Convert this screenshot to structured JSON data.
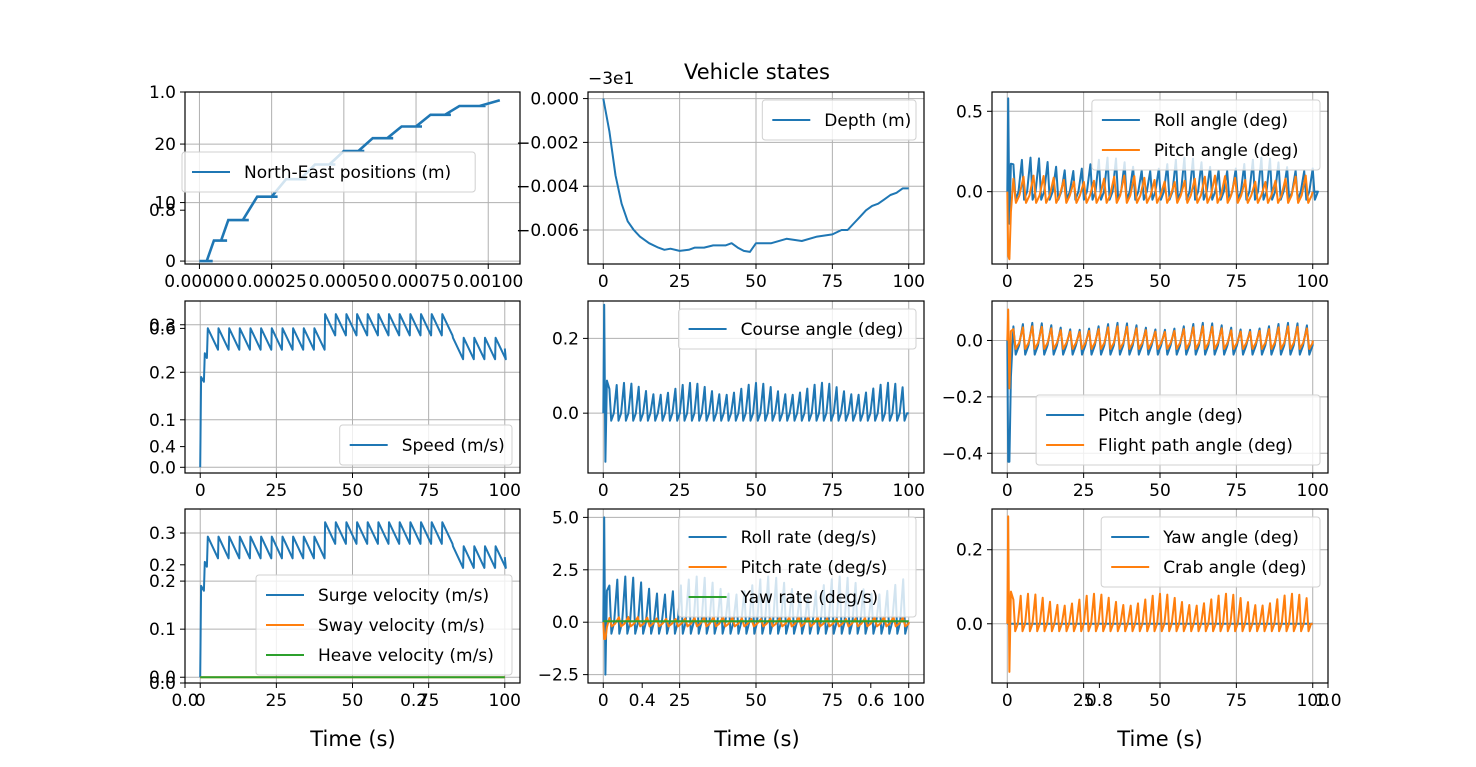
{
  "figure": {
    "title": "Vehicle states",
    "colors": {
      "blue": "#1f77b4",
      "orange": "#ff7f0e",
      "green": "#2ca02c"
    }
  },
  "chart_data": [
    {
      "id": "p1",
      "type": "line",
      "row": 0,
      "col": 0,
      "xlim": [
        -5e-05,
        0.00111
      ],
      "ylim": [
        -0.5,
        28.9
      ],
      "xticks": [
        "0.00000",
        "0.00025",
        "0.00050",
        "0.00075",
        "0.00100"
      ],
      "xtickvals": [
        0,
        0.00025,
        0.0005,
        0.00075,
        0.001
      ],
      "yticks": [
        "0",
        "10",
        "20"
      ],
      "ytickvals": [
        0,
        10,
        20
      ],
      "legend": "center-left",
      "grid": true,
      "series": [
        {
          "name": "North-East positions (m)",
          "color": "#1f77b4",
          "kind": "ne",
          "x": [
            0,
            5e-05,
            0.0001,
            0.0002,
            0.0003,
            0.0004,
            0.0005,
            0.0006,
            0.0007,
            0.0008,
            0.0009,
            0.00104
          ],
          "y": [
            0,
            3.5,
            7,
            11,
            14,
            16.5,
            18.8,
            21,
            23,
            25,
            26.5,
            27.5
          ]
        }
      ]
    },
    {
      "id": "p2",
      "type": "line",
      "row": 0,
      "col": 1,
      "offset_text": "−3e1",
      "xlim": [
        -5,
        105
      ],
      "ylim": [
        -0.00755,
        0.0003
      ],
      "xticks": [
        "0",
        "25",
        "50",
        "75",
        "100"
      ],
      "xtickvals": [
        0,
        25,
        50,
        75,
        100
      ],
      "yticks": [
        "0.000",
        "−0.002",
        "−0.004",
        "−0.006"
      ],
      "ytickvals": [
        0,
        -0.002,
        -0.004,
        -0.006
      ],
      "legend": "upper-right",
      "grid": true,
      "series": [
        {
          "name": "Depth (m)",
          "color": "#1f77b4",
          "kind": "points",
          "x": [
            0,
            2,
            4,
            6,
            8,
            10,
            12,
            15,
            18,
            20,
            22,
            25,
            28,
            30,
            33,
            36,
            40,
            42,
            44,
            46,
            48,
            50,
            55,
            60,
            65,
            70,
            75,
            78,
            80,
            82,
            84,
            86,
            88,
            90,
            92,
            94,
            96,
            98,
            100
          ],
          "y": [
            0,
            -0.0015,
            -0.0035,
            -0.0048,
            -0.0056,
            -0.006,
            -0.0063,
            -0.0066,
            -0.0068,
            -0.0069,
            -0.00685,
            -0.00695,
            -0.0069,
            -0.0068,
            -0.0068,
            -0.0067,
            -0.0067,
            -0.0066,
            -0.0068,
            -0.00695,
            -0.007,
            -0.0066,
            -0.0066,
            -0.0064,
            -0.0065,
            -0.0063,
            -0.0062,
            -0.006,
            -0.006,
            -0.0057,
            -0.0054,
            -0.0051,
            -0.0049,
            -0.0048,
            -0.0046,
            -0.0044,
            -0.0043,
            -0.0041,
            -0.0041
          ]
        }
      ]
    },
    {
      "id": "p3",
      "type": "line",
      "row": 0,
      "col": 2,
      "xlim": [
        -5,
        105
      ],
      "ylim": [
        -0.45,
        0.62
      ],
      "xticks": [
        "0",
        "25",
        "50",
        "75",
        "100"
      ],
      "xtickvals": [
        0,
        25,
        50,
        75,
        100
      ],
      "yticks": [
        "0.0",
        "0.5"
      ],
      "ytickvals": [
        0,
        0.5
      ],
      "legend": "upper-right",
      "grid": true,
      "series": [
        {
          "name": "Roll angle (deg)",
          "color": "#1f77b4",
          "kind": "osc",
          "spike": 0.58,
          "spikeMin": -0.2,
          "hi": 0.17,
          "lo": -0.05,
          "period": 2.8
        },
        {
          "name": "Pitch angle (deg)",
          "color": "#ff7f0e",
          "kind": "osc",
          "spike": -0.4,
          "spikeMin": -0.42,
          "hi": 0.08,
          "lo": -0.07,
          "period": 3.3
        }
      ]
    },
    {
      "id": "p4",
      "type": "line",
      "row": 1,
      "col": 0,
      "xlim": [
        -5,
        105
      ],
      "ylim": [
        -0.012,
        0.35
      ],
      "xticks": [
        "0",
        "25",
        "50",
        "75",
        "100"
      ],
      "xtickvals": [
        0,
        25,
        50,
        75,
        100
      ],
      "yticks": [
        "0.0",
        "0.1",
        "0.2",
        "0.3"
      ],
      "ytickvals": [
        0,
        0.1,
        0.2,
        0.3
      ],
      "legend": "lower-right",
      "grid": true,
      "series": [
        {
          "name": "Speed (m/s)",
          "color": "#1f77b4",
          "kind": "saw",
          "base1": 0.27,
          "base2": 0.3,
          "base3": 0.25,
          "amp": 0.045,
          "period": 3.5
        }
      ]
    },
    {
      "id": "p5",
      "type": "line",
      "row": 1,
      "col": 1,
      "xlim": [
        -5,
        105
      ],
      "ylim": [
        -0.16,
        0.3
      ],
      "xticks": [
        "0",
        "25",
        "50",
        "75",
        "100"
      ],
      "xtickvals": [
        0,
        25,
        50,
        75,
        100
      ],
      "yticks": [
        "0.0",
        "0.2"
      ],
      "ytickvals": [
        0,
        0.2
      ],
      "legend": "upper-right",
      "grid": true,
      "series": [
        {
          "name": "Course angle (deg)",
          "color": "#1f77b4",
          "kind": "osc",
          "spike": 0.29,
          "spikeMin": -0.13,
          "hi": 0.065,
          "lo": -0.02,
          "period": 2.4
        }
      ]
    },
    {
      "id": "p6",
      "type": "line",
      "row": 1,
      "col": 2,
      "xlim": [
        -5,
        105
      ],
      "ylim": [
        -0.47,
        0.14
      ],
      "xticks": [
        "0",
        "25",
        "50",
        "75",
        "100"
      ],
      "xtickvals": [
        0,
        25,
        50,
        75,
        100
      ],
      "yticks": [
        "0.0",
        "−0.2",
        "−0.4"
      ],
      "ytickvals": [
        0,
        -0.2,
        -0.4
      ],
      "legend": "lower-right",
      "grid": true,
      "series": [
        {
          "name": "Pitch angle (deg)",
          "color": "#1f77b4",
          "kind": "osc",
          "spike": -0.43,
          "spikeMin": -0.43,
          "hi": 0.05,
          "lo": -0.05,
          "period": 3.1
        },
        {
          "name": "Flight path angle (deg)",
          "color": "#ff7f0e",
          "kind": "osc",
          "spike": 0.11,
          "spikeMin": -0.17,
          "hi": 0.04,
          "lo": -0.03,
          "period": 3.1
        }
      ]
    },
    {
      "id": "p7",
      "type": "line",
      "row": 2,
      "col": 0,
      "xlim": [
        -5,
        105
      ],
      "ylim": [
        -0.012,
        0.35
      ],
      "xticks": [
        "0",
        "25",
        "50",
        "75",
        "100"
      ],
      "xtickvals": [
        0,
        25,
        50,
        75,
        100
      ],
      "yticks": [
        "0.0",
        "0.1",
        "0.2",
        "0.3"
      ],
      "ytickvals": [
        0,
        0.1,
        0.2,
        0.3
      ],
      "legend": "lower-right",
      "grid": true,
      "series": [
        {
          "name": "Surge velocity (m/s)",
          "color": "#1f77b4",
          "kind": "saw",
          "base1": 0.27,
          "base2": 0.3,
          "base3": 0.25,
          "amp": 0.045,
          "period": 3.5
        },
        {
          "name": "Sway velocity (m/s)",
          "color": "#ff7f0e",
          "kind": "flat",
          "value": 0
        },
        {
          "name": "Heave velocity (m/s)",
          "color": "#2ca02c",
          "kind": "flat",
          "value": 0
        }
      ]
    },
    {
      "id": "p8",
      "type": "line",
      "row": 2,
      "col": 1,
      "xlim": [
        -5,
        105
      ],
      "ylim": [
        -2.9,
        5.4
      ],
      "xticks": [
        "0",
        "25",
        "50",
        "75",
        "100"
      ],
      "xtickvals": [
        0,
        25,
        50,
        75,
        100
      ],
      "yticks": [
        "5.0",
        "2.5",
        "0.0",
        "−2.5"
      ],
      "ytickvals": [
        5,
        2.5,
        0,
        -2.5
      ],
      "legend": "upper-right",
      "grid": true,
      "series": [
        {
          "name": "Roll rate (deg/s)",
          "color": "#1f77b4",
          "kind": "osc",
          "spike": 5.0,
          "spikeMin": -2.5,
          "hi": 1.75,
          "lo": -0.55,
          "period": 2.6
        },
        {
          "name": "Pitch rate (deg/s)",
          "color": "#ff7f0e",
          "kind": "osc",
          "spike": -0.8,
          "spikeMin": -0.8,
          "hi": 0.2,
          "lo": -0.2,
          "period": 3.1
        },
        {
          "name": "Yaw rate (deg/s)",
          "color": "#2ca02c",
          "kind": "flat",
          "value": 0.05
        }
      ]
    },
    {
      "id": "p9",
      "type": "line",
      "row": 2,
      "col": 2,
      "xlim": [
        -5,
        105
      ],
      "ylim": [
        -0.16,
        0.31
      ],
      "xticks": [
        "0",
        "25",
        "50",
        "75",
        "100"
      ],
      "xtickvals": [
        0,
        25,
        50,
        75,
        100
      ],
      "yticks": [
        "0.0",
        "0.2"
      ],
      "ytickvals": [
        0,
        0.2
      ],
      "legend": "upper-right",
      "grid": true,
      "series": [
        {
          "name": "Yaw angle (deg)",
          "color": "#1f77b4",
          "kind": "flat",
          "value": 0
        },
        {
          "name": "Crab angle (deg)",
          "color": "#ff7f0e",
          "kind": "osc",
          "spike": 0.29,
          "spikeMin": -0.13,
          "hi": 0.065,
          "lo": -0.02,
          "period": 2.4
        }
      ]
    }
  ],
  "ghost_axes": {
    "xticks": [
      "0.0",
      "0.2",
      "0.4",
      "0.6",
      "0.8",
      "1.0"
    ],
    "yticks": [
      "0.0",
      "0.2",
      "0.4",
      "0.6",
      "0.8",
      "1.0"
    ]
  },
  "xlabels": [
    "Time (s)",
    "Time (s)",
    "Time (s)"
  ]
}
